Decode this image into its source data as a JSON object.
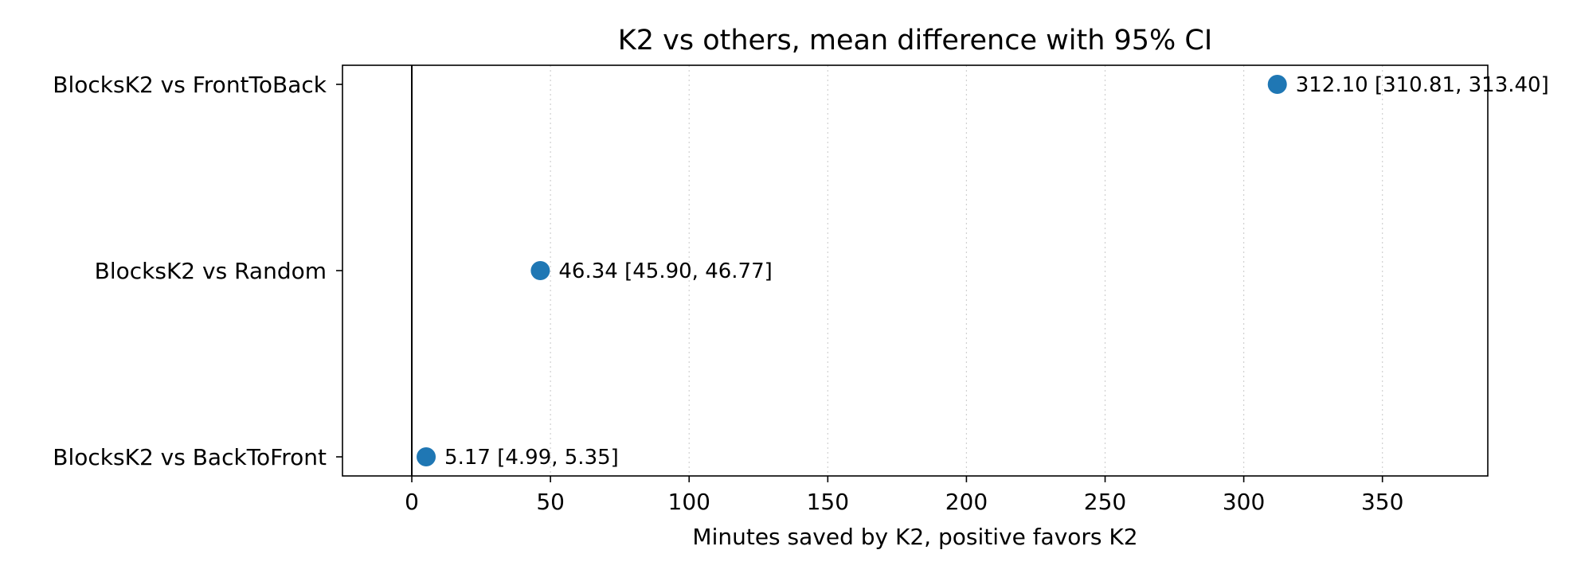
{
  "chart_data": {
    "type": "scatter",
    "title": "K2 vs others, mean difference with 95% CI",
    "xlabel": "Minutes saved by K2, positive favors K2",
    "ylabel": "",
    "xlim": [
      -25,
      388
    ],
    "xticks": [
      0,
      50,
      100,
      150,
      200,
      250,
      300,
      350
    ],
    "categories": [
      "BlocksK2 vs FrontToBack",
      "BlocksK2 vs Random",
      "BlocksK2 vs BackToFront"
    ],
    "points": [
      {
        "category": "BlocksK2 vs FrontToBack",
        "mean": 312.1,
        "ci": [
          310.81,
          313.4
        ],
        "label": "312.10 [310.81, 313.40]"
      },
      {
        "category": "BlocksK2 vs Random",
        "mean": 46.34,
        "ci": [
          45.9,
          46.77
        ],
        "label": "46.34 [45.90, 46.77]"
      },
      {
        "category": "BlocksK2 vs BackToFront",
        "mean": 5.17,
        "ci": [
          4.99,
          5.35
        ],
        "label": "5.17 [4.99, 5.35]"
      }
    ],
    "reference_line_x": 0,
    "grid": "x-dotted",
    "legend": "none",
    "colors": {
      "marker": "#1f77b4",
      "grid": "#d0d0d0",
      "axis": "#000000"
    }
  }
}
